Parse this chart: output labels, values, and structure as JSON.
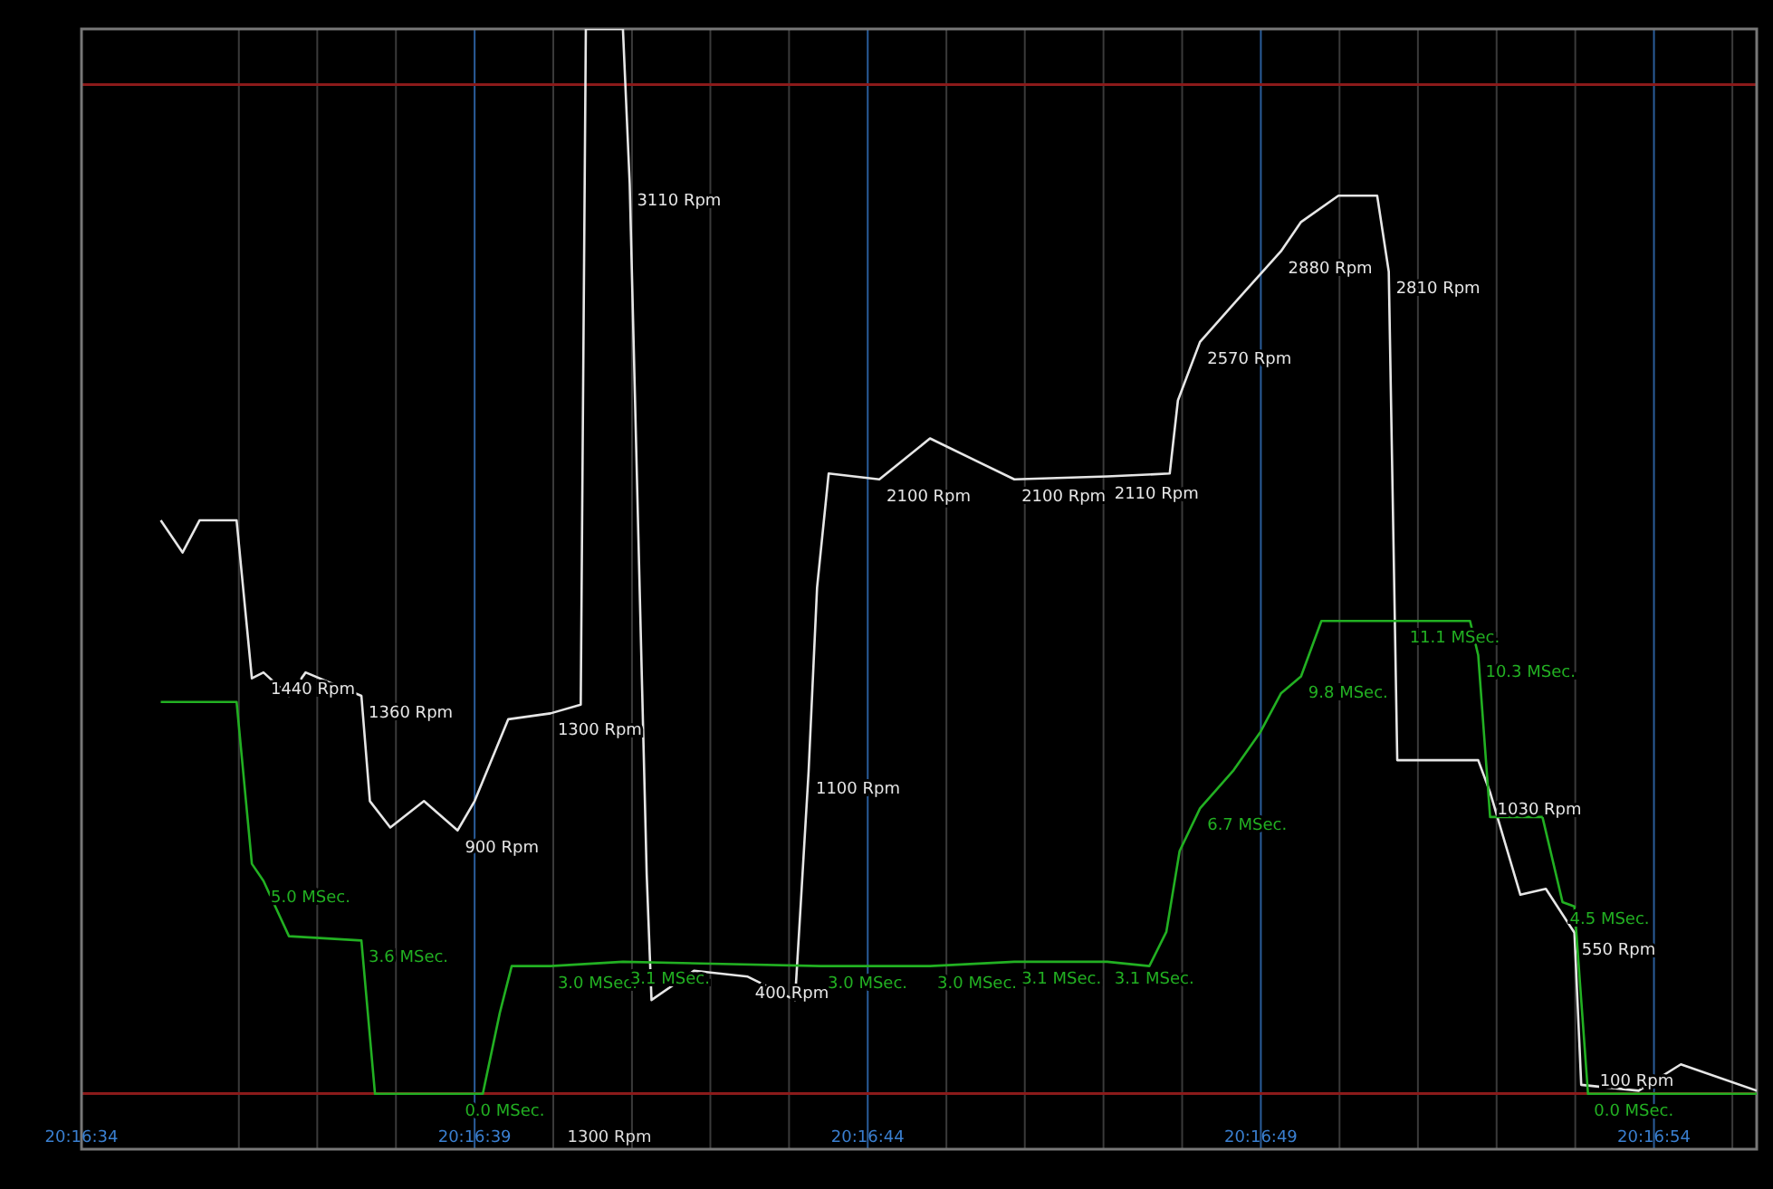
{
  "chart_data": {
    "type": "line",
    "xlim": [
      20.276111,
      20.28203
    ],
    "ylim": [
      -190,
      3640
    ],
    "y2lim": [
      -1.3,
      25
    ],
    "tick_labels": "x",
    "grid": "x",
    "xticks": [
      {
        "value": 20.276111,
        "label": "20:16:34"
      },
      {
        "value": 20.276667,
        "label": null
      },
      {
        "value": 20.276944,
        "label": null
      },
      {
        "value": 20.277222,
        "label": null
      },
      {
        "value": 20.2775,
        "label": "20:16:39"
      },
      {
        "value": 20.277778,
        "label": null
      },
      {
        "value": 20.278056,
        "label": null
      },
      {
        "value": 20.278333,
        "label": null
      },
      {
        "value": 20.278611,
        "label": null
      },
      {
        "value": 20.278889,
        "label": "20:16:44"
      },
      {
        "value": 20.279167,
        "label": null
      },
      {
        "value": 20.279444,
        "label": null
      },
      {
        "value": 20.279722,
        "label": null
      },
      {
        "value": 20.28,
        "label": null
      },
      {
        "value": 20.280278,
        "label": "20:16:49"
      },
      {
        "value": 20.280556,
        "label": null
      },
      {
        "value": 20.280833,
        "label": null
      },
      {
        "value": 20.281111,
        "label": null
      },
      {
        "value": 20.281389,
        "label": null
      },
      {
        "value": 20.281667,
        "label": "20:16:54"
      },
      {
        "value": 20.281944,
        "label": null
      }
    ],
    "ref_lines": [
      {
        "axis": "y",
        "value": 0,
        "color": "#8b1a1a"
      },
      {
        "axis": "y",
        "value": 3450,
        "color": "#8b1a1a"
      }
    ],
    "annotations": [
      "1300 Rpm"
    ],
    "series": [
      {
        "color": "#e6e6e6",
        "x": [
          20.276391,
          20.276468,
          20.276528,
          20.276659,
          20.276713,
          20.276754,
          20.276844,
          20.276903,
          20.2771,
          20.27713,
          20.277202,
          20.277321,
          20.27744,
          20.2775,
          20.277619,
          20.277768,
          20.277875,
          20.277893,
          20.278024,
          20.278048,
          20.278108,
          20.278125,
          20.278275,
          20.278465,
          20.278632,
          20.27865,
          20.27868,
          20.27871,
          20.278751,
          20.27893,
          20.279109,
          20.279407,
          20.279735,
          20.279956,
          20.279985,
          20.280063,
          20.280182,
          20.280349,
          20.28042,
          20.280552,
          20.280689,
          20.28073,
          20.28076,
          20.280897,
          20.281046,
          20.281088,
          20.281195,
          20.281285,
          20.281386,
          20.28141,
          20.281613,
          20.281762,
          20.28203
        ],
        "values": [
          1960,
          1850,
          1960,
          1960,
          1420,
          1440,
          1360,
          1440,
          1360,
          1000,
          910,
          1000,
          900,
          1000,
          1280,
          1300,
          1330,
          3640,
          3640,
          3110,
          750,
          320,
          420,
          400,
          320,
          610,
          1100,
          1730,
          2120,
          2100,
          2240,
          2100,
          2110,
          2120,
          2370,
          2570,
          2700,
          2880,
          2980,
          3070,
          3070,
          2810,
          1140,
          1140,
          1140,
          1030,
          680,
          700,
          550,
          30,
          10,
          100,
          10
        ],
        "value_labels": [
          null,
          null,
          null,
          null,
          null,
          "1440 Rpm",
          null,
          null,
          "1360 Rpm",
          null,
          null,
          null,
          "900 Rpm",
          null,
          null,
          "1300 Rpm",
          null,
          null,
          null,
          "3110 Rpm",
          null,
          null,
          null,
          "400 Rpm",
          null,
          null,
          "1100 Rpm",
          null,
          null,
          "2100 Rpm",
          null,
          "2100 Rpm",
          "2110 Rpm",
          null,
          null,
          "2570 Rpm",
          null,
          "2880 Rpm",
          null,
          null,
          null,
          "2810 Rpm",
          null,
          null,
          null,
          "1030 Rpm",
          null,
          null,
          "550 Rpm",
          null,
          null,
          "100 Rpm",
          null
        ]
      },
      {
        "color": "#22b022",
        "axis": "y2",
        "x": [
          20.276391,
          20.276659,
          20.276713,
          20.276754,
          20.276844,
          20.2771,
          20.277148,
          20.27744,
          20.277529,
          20.277589,
          20.277631,
          20.277768,
          20.278024,
          20.278722,
          20.279109,
          20.279407,
          20.279735,
          20.279884,
          20.279944,
          20.279991,
          20.280063,
          20.280182,
          20.280277,
          20.280349,
          20.28042,
          20.280492,
          20.280778,
          20.281017,
          20.281046,
          20.281088,
          20.281273,
          20.281344,
          20.281386,
          20.281434,
          20.281762,
          20.28203
        ],
        "values": [
          9.2,
          9.2,
          5.4,
          5.0,
          3.7,
          3.6,
          0.0,
          0.0,
          0.0,
          1.9,
          3.0,
          3.0,
          3.1,
          3.0,
          3.0,
          3.1,
          3.1,
          3.0,
          3.8,
          5.7,
          6.7,
          7.6,
          8.5,
          9.4,
          9.8,
          11.1,
          11.1,
          11.1,
          10.3,
          6.5,
          6.5,
          4.5,
          4.4,
          0.0,
          0.0,
          0.0
        ],
        "value_labels": [
          null,
          null,
          null,
          "5.0 MSec.",
          null,
          "3.6 MSec.",
          null,
          "0.0 MSec.",
          null,
          null,
          null,
          "3.0 MSec.",
          "3.1 MSec.",
          "3.0 MSec.",
          "3.0 MSec.",
          "3.1 MSec.",
          "3.1 MSec.",
          null,
          null,
          null,
          "6.7 MSec.",
          null,
          null,
          null,
          "9.8 MSec.",
          null,
          "11.1 MSec.",
          null,
          "10.3 MSec.",
          null,
          null,
          "4.5 MSec.",
          null,
          null,
          "0.0 MSec.",
          null
        ]
      }
    ]
  }
}
